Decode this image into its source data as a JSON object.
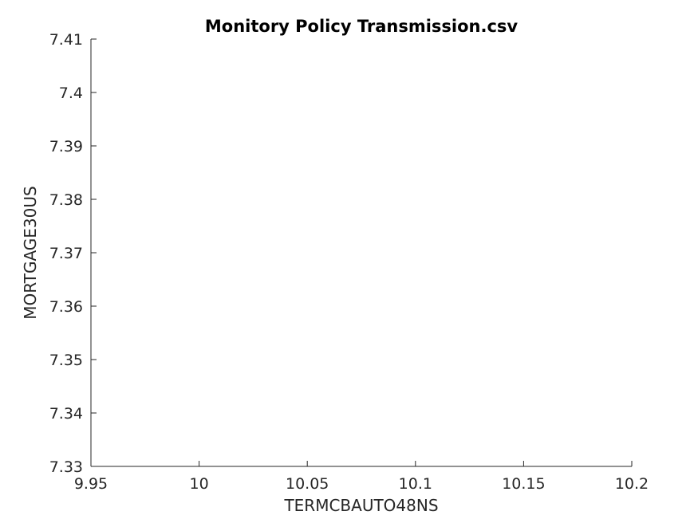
{
  "chart_data": {
    "type": "scatter",
    "title": "Monitory Policy Transmission.csv",
    "xlabel": "TERMCBAUTO48NS",
    "ylabel": "MORTGAGE30US",
    "xlim": [
      9.95,
      10.2
    ],
    "ylim": [
      7.33,
      7.41
    ],
    "x_ticks": [
      "9.95",
      "10",
      "10.05",
      "10.1",
      "10.15",
      "10.2"
    ],
    "y_ticks": [
      "7.33",
      "7.34",
      "7.35",
      "7.36",
      "7.37",
      "7.38",
      "7.39",
      "7.4",
      "7.41"
    ],
    "grid": false,
    "series": [
      {
        "x": [],
        "y": []
      }
    ],
    "colors": {
      "axis": "#262626",
      "text": "#000000"
    }
  }
}
